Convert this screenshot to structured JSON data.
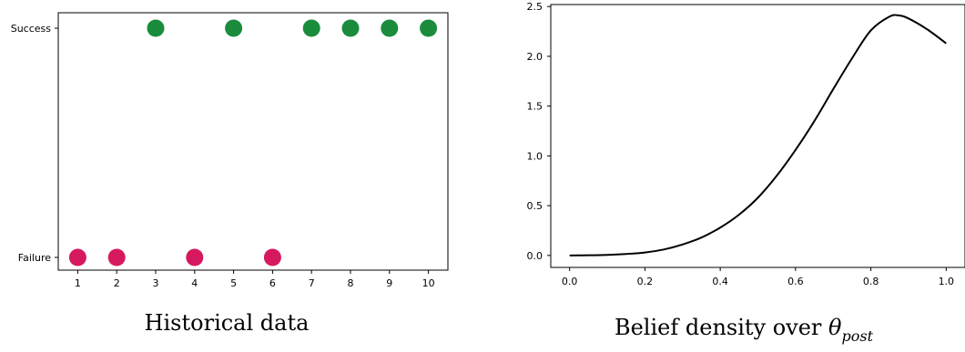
{
  "chart_data": [
    {
      "type": "scatter",
      "caption": "Historical data",
      "x": [
        1,
        2,
        3,
        4,
        5,
        6,
        7,
        8,
        9,
        10
      ],
      "y_categories": [
        "Failure",
        "Success"
      ],
      "outcomes": [
        "Failure",
        "Failure",
        "Success",
        "Failure",
        "Success",
        "Failure",
        "Success",
        "Success",
        "Success",
        "Success"
      ],
      "xticks": [
        "1",
        "2",
        "3",
        "4",
        "5",
        "6",
        "7",
        "8",
        "9",
        "10"
      ],
      "colors": {
        "Success": "#1a8c3c",
        "Failure": "#d6195f"
      },
      "grid": false
    },
    {
      "type": "line",
      "caption_prefix": "Belief density over ",
      "caption_symbol": "θ",
      "caption_subscript": "post",
      "x": [
        0.0,
        0.05,
        0.1,
        0.15,
        0.2,
        0.25,
        0.3,
        0.35,
        0.4,
        0.45,
        0.5,
        0.55,
        0.6,
        0.65,
        0.7,
        0.75,
        0.8,
        0.85,
        0.875,
        0.9,
        0.95,
        1.0
      ],
      "y": [
        0.0,
        0.002,
        0.006,
        0.015,
        0.03,
        0.06,
        0.11,
        0.18,
        0.28,
        0.41,
        0.58,
        0.8,
        1.06,
        1.35,
        1.67,
        1.98,
        2.26,
        2.4,
        2.41,
        2.38,
        2.27,
        2.13
      ],
      "xticks": [
        "0.0",
        "0.2",
        "0.4",
        "0.6",
        "0.8",
        "1.0"
      ],
      "yticks": [
        "0.0",
        "0.5",
        "1.0",
        "1.5",
        "2.0",
        "2.5"
      ],
      "xlim": [
        -0.05,
        1.05
      ],
      "ylim": [
        -0.12,
        2.52
      ],
      "line_color": "#000000",
      "grid": false
    }
  ]
}
